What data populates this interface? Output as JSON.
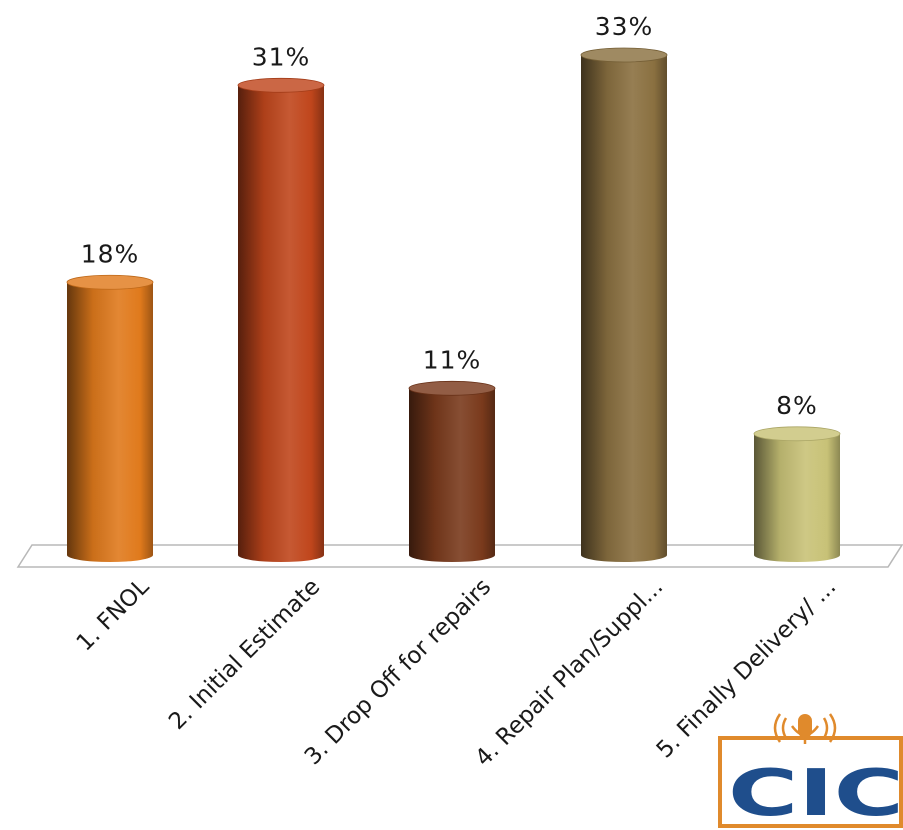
{
  "chart_data": {
    "type": "bar",
    "style": "3d-cylinder",
    "categories": [
      "1. FNOL",
      "2. Initial Estimate",
      "3. Drop Off for repairs",
      "4. Repair Plan/Suppl...",
      "5. Finally Delivery/ ..."
    ],
    "values": [
      18,
      31,
      11,
      33,
      8
    ],
    "value_labels": [
      "18%",
      "31%",
      "11%",
      "33%",
      "8%"
    ],
    "unit": "%",
    "ylim": [
      0,
      33
    ],
    "grid": false,
    "legend": "none",
    "bar_colors": [
      "#e07a1c",
      "#c0461c",
      "#7a3a1c",
      "#8a7040",
      "#c8c277"
    ]
  },
  "logo": {
    "text": "CIC",
    "icon": "microphone-broadcast-icon",
    "colors": {
      "primary": "#1f4e8c",
      "accent": "#e08a2c"
    }
  }
}
